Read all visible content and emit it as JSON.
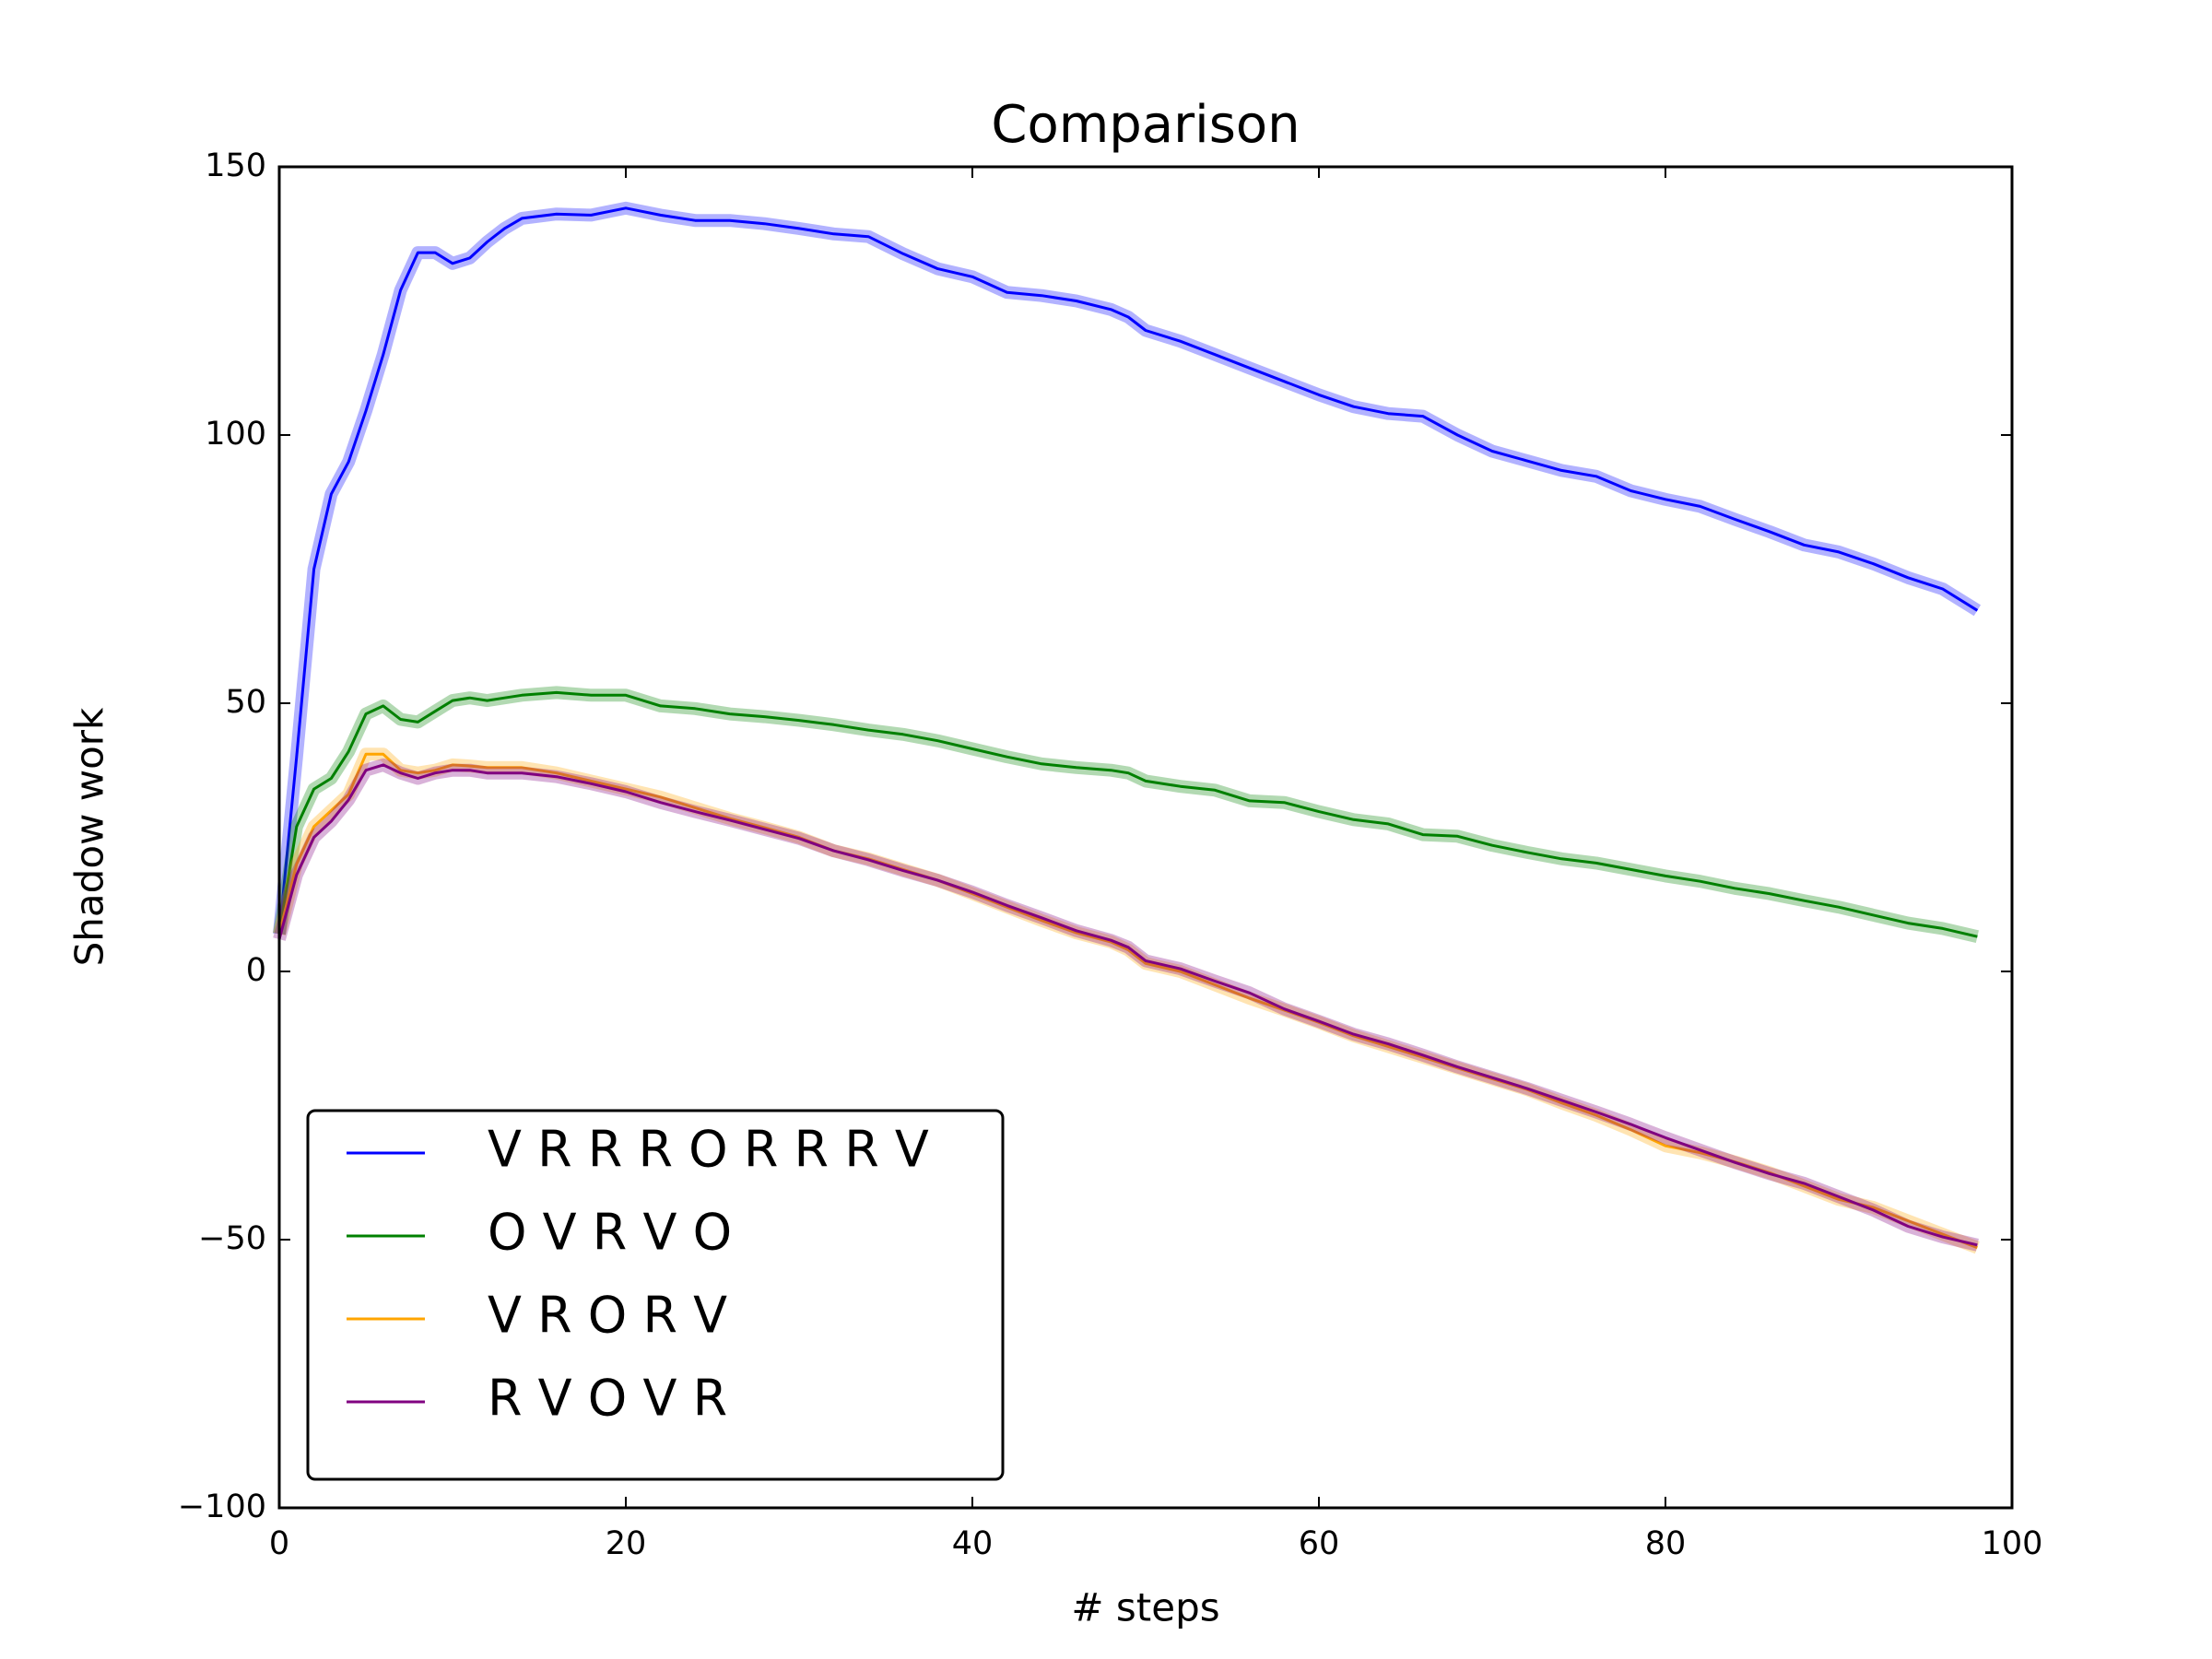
{
  "chart_data": {
    "type": "line",
    "title": "Comparison",
    "x_label": "# steps",
    "y_label": "Shadow work",
    "x": [
      0,
      1,
      2,
      3,
      4,
      5,
      6,
      7,
      8,
      9,
      10,
      11,
      12,
      13,
      14,
      16,
      18,
      20,
      22,
      24,
      26,
      28,
      30,
      32,
      34,
      36,
      38,
      40,
      42,
      44,
      46,
      48,
      49,
      50,
      52,
      54,
      56,
      58,
      60,
      62,
      64,
      66,
      68,
      70,
      72,
      74,
      76,
      78,
      80,
      82,
      84,
      86,
      88,
      90,
      92,
      94,
      96,
      98
    ],
    "series": [
      {
        "name": "V R R R O R R R V",
        "color": "#0000ff",
        "values": [
          7,
          40,
          75,
          89,
          95,
          104.5,
          115,
          127,
          134,
          134,
          132,
          133,
          136,
          138.5,
          140.4,
          141.2,
          141,
          142.3,
          141,
          140,
          140,
          139.4,
          138.5,
          137.5,
          137,
          133.8,
          131,
          129.5,
          126.6,
          126,
          125,
          123.4,
          122,
          119.5,
          117.5,
          115,
          112.5,
          110,
          107.5,
          105.3,
          104,
          103.5,
          100,
          97,
          95.2,
          93.4,
          92.3,
          89.6,
          88,
          86.7,
          84.3,
          82,
          79.5,
          78.2,
          76,
          73.4,
          71.3,
          67.3
        ]
      },
      {
        "name": "O V R V O",
        "color": "#008000",
        "values": [
          7,
          27,
          34,
          36,
          41,
          48,
          49.5,
          47,
          46.5,
          48.5,
          50.5,
          51,
          50.5,
          51,
          51.5,
          52,
          51.5,
          51.5,
          49.5,
          49,
          48,
          47.5,
          46.8,
          46,
          45,
          44.2,
          43,
          41.5,
          40,
          38.7,
          38,
          37.5,
          37,
          35.5,
          34.5,
          33.8,
          31.8,
          31.5,
          29.8,
          28.3,
          27.5,
          25.5,
          25.2,
          23.5,
          22.2,
          21,
          20.2,
          19,
          17.8,
          16.8,
          15.5,
          14.5,
          13.2,
          12,
          10.5,
          9,
          8,
          6.5
        ]
      },
      {
        "name": "V R O R V",
        "color": "#ffa500",
        "values": [
          7,
          20,
          27,
          30,
          33,
          40.5,
          40.5,
          37.5,
          37,
          37.5,
          38.5,
          38.3,
          38,
          38,
          38,
          37,
          35.5,
          34,
          32.5,
          30.5,
          28.5,
          26.8,
          25,
          22.5,
          21,
          19,
          17,
          14.5,
          12,
          9.5,
          7.2,
          5.5,
          4,
          1.5,
          0,
          -2.5,
          -5,
          -7.2,
          -9.5,
          -12,
          -14,
          -16,
          -18,
          -20,
          -22,
          -24.5,
          -26.8,
          -29.5,
          -32.5,
          -33.8,
          -35.5,
          -37.5,
          -40,
          -42.5,
          -44,
          -46.5,
          -49,
          -51.5
        ]
      },
      {
        "name": "R V O V R",
        "color": "#800080",
        "values": [
          6,
          18,
          25,
          28,
          32,
          37.5,
          38.5,
          37,
          36,
          37,
          37.5,
          37.5,
          37,
          37,
          37,
          36.3,
          35,
          33.5,
          31.5,
          29.8,
          28.2,
          26.5,
          24.8,
          22.5,
          20.8,
          18.8,
          17,
          14.8,
          12.3,
          10,
          7.6,
          5.8,
          4.5,
          2,
          0.5,
          -1.8,
          -4,
          -7,
          -9.3,
          -11.7,
          -13.5,
          -15.6,
          -17.8,
          -19.8,
          -21.8,
          -24,
          -26.2,
          -28.5,
          -31,
          -33.3,
          -35.6,
          -37.7,
          -39.5,
          -42,
          -44.5,
          -47.5,
          -49.5,
          -51
        ]
      }
    ],
    "xlim": [
      0,
      100
    ],
    "xticks": [
      0,
      20,
      40,
      60,
      80,
      100
    ],
    "ylim": [
      -100,
      150
    ],
    "yticks": [
      {
        "value": -100,
        "label": "−100"
      },
      {
        "value": -50,
        "label": "−50"
      },
      0,
      50,
      100,
      150
    ],
    "grid": false,
    "legend": "lower left"
  }
}
